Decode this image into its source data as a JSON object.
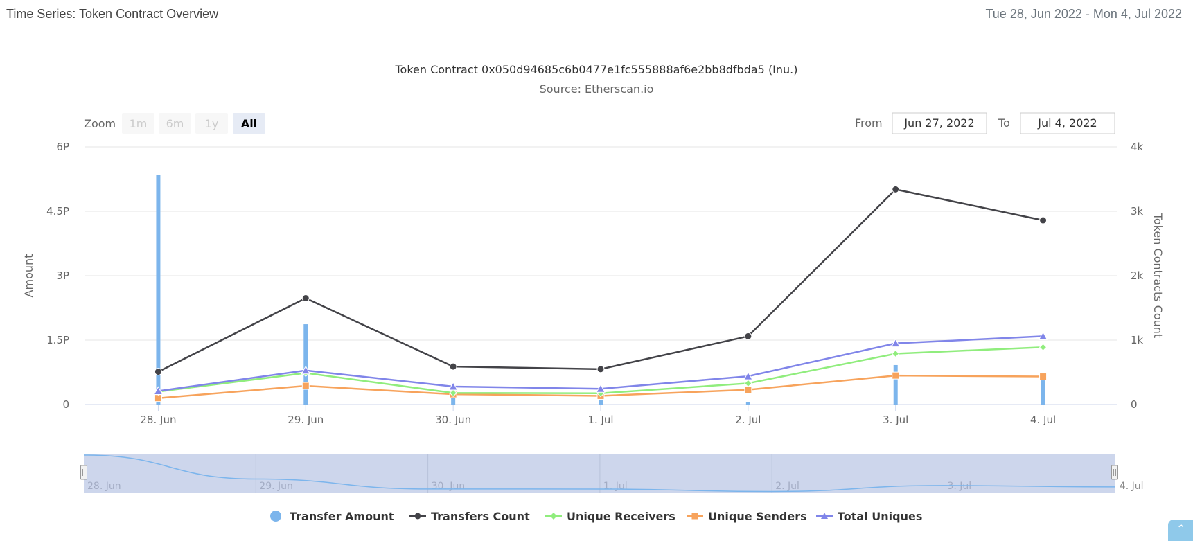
{
  "header": {
    "title": "Time Series: Token Contract Overview",
    "date_range": "Tue 28, Jun 2022 - Mon 4, Jul 2022"
  },
  "zoom": {
    "label": "Zoom",
    "buttons": [
      "1m",
      "6m",
      "1y",
      "All"
    ],
    "active": "All"
  },
  "range": {
    "from_label": "From",
    "from_value": "Jun 27, 2022",
    "to_label": "To",
    "to_value": "Jul 4, 2022"
  },
  "colors": {
    "transfer_amount": "#7cb5ec",
    "transfers_count": "#434348",
    "unique_receivers": "#90ed7d",
    "unique_senders": "#f7a35c",
    "total_uniques": "#8085e9",
    "navigator_fill": "#cdd6ec",
    "navigator_line": "#7cb5ec",
    "grid": "#e6e6e6"
  },
  "chart_data": {
    "type": "bar",
    "title": "Token Contract 0x050d94685c6b0477e1fc555888af6e2bb8dfbda5 (Inu.)",
    "subtitle": "Source: Etherscan.io",
    "categories": [
      "28. Jun",
      "29. Jun",
      "30. Jun",
      "1. Jul",
      "2. Jul",
      "3. Jul",
      "4. Jul"
    ],
    "y_left": {
      "label": "Amount",
      "ticks": [
        "0",
        "1.5P",
        "3P",
        "4.5P",
        "6P"
      ],
      "tick_values": [
        0,
        1.5,
        3,
        4.5,
        6
      ],
      "range": [
        0,
        6
      ],
      "unit": "P"
    },
    "y_right": {
      "label": "Token Contracts Count",
      "ticks": [
        "0",
        "1k",
        "2k",
        "3k",
        "4k"
      ],
      "tick_values": [
        0,
        1000,
        2000,
        3000,
        4000
      ],
      "range": [
        0,
        4000
      ]
    },
    "grid": true,
    "legend_position": "bottom-center",
    "series": [
      {
        "name": "Transfer Amount",
        "type": "column",
        "axis": "left",
        "values": [
          5.35,
          1.87,
          0.42,
          0.41,
          0.05,
          0.92,
          0.72
        ]
      },
      {
        "name": "Transfers Count",
        "type": "line",
        "axis": "right",
        "marker": "circle",
        "values": [
          510,
          1650,
          590,
          550,
          1060,
          3340,
          2860
        ]
      },
      {
        "name": "Unique Receivers",
        "type": "line",
        "axis": "right",
        "marker": "diamond",
        "values": [
          200,
          490,
          180,
          175,
          330,
          790,
          890
        ]
      },
      {
        "name": "Unique Senders",
        "type": "line",
        "axis": "right",
        "marker": "square",
        "values": [
          100,
          290,
          160,
          135,
          230,
          450,
          435
        ]
      },
      {
        "name": "Total Uniques",
        "type": "line",
        "axis": "right",
        "marker": "triangle",
        "values": [
          210,
          530,
          280,
          245,
          440,
          950,
          1060
        ]
      }
    ],
    "navigator": {
      "labels": [
        "28. Jun",
        "29. Jun",
        "30. Jun",
        "1. Jul",
        "2. Jul",
        "3. Jul",
        "4. Jul"
      ],
      "series": "Transfer Amount"
    }
  }
}
